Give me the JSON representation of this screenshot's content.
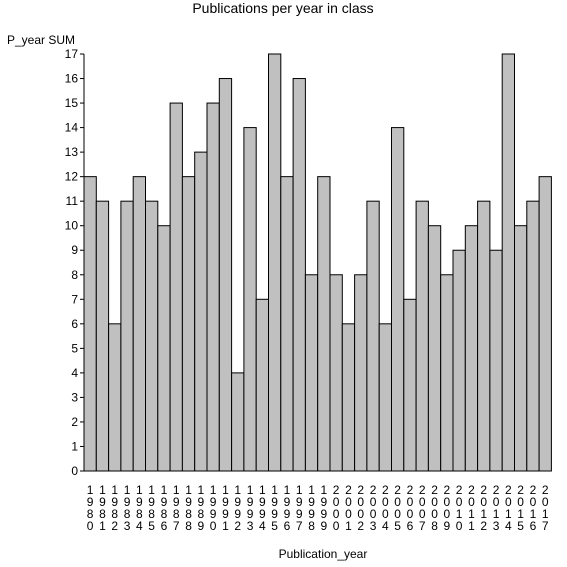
{
  "chart_data": {
    "type": "bar",
    "title": "Publications per year in class",
    "ylabel": "P_year SUM",
    "xlabel": "Publication_year",
    "categories": [
      "1980",
      "1981",
      "1982",
      "1983",
      "1984",
      "1985",
      "1986",
      "1987",
      "1988",
      "1989",
      "1990",
      "1991",
      "1992",
      "1993",
      "1994",
      "1995",
      "1996",
      "1997",
      "1998",
      "1999",
      "2000",
      "2001",
      "2002",
      "2003",
      "2004",
      "2005",
      "2006",
      "2007",
      "2008",
      "2009",
      "2010",
      "2011",
      "2012",
      "2013",
      "2014",
      "2015",
      "2016",
      "2017"
    ],
    "values": [
      12,
      11,
      6,
      11,
      12,
      11,
      10,
      15,
      12,
      13,
      15,
      16,
      4,
      14,
      7,
      17,
      12,
      16,
      8,
      12,
      8,
      6,
      8,
      11,
      6,
      14,
      7,
      11,
      10,
      8,
      9,
      10,
      11,
      9,
      17,
      10,
      11,
      12
    ],
    "yticks": [
      "0",
      "1",
      "2",
      "3",
      "4",
      "5",
      "6",
      "7",
      "8",
      "9",
      "10",
      "11",
      "12",
      "13",
      "14",
      "15",
      "16",
      "17"
    ],
    "ylim": [
      0,
      17
    ],
    "bar_color": "#c0c0c0",
    "grid": false,
    "legend": "none"
  }
}
